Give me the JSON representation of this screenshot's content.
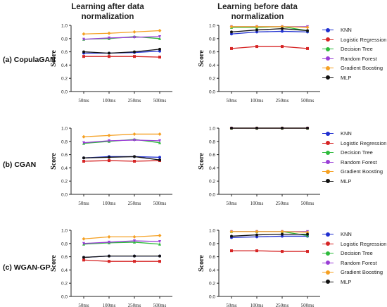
{
  "figure": {
    "col_titles": [
      "Learning after data\nnormalization",
      "Learning before data\nnormalization"
    ],
    "row_labels": [
      "(a) CopulaGAN",
      "(b) CGAN",
      "(c) WGAN-GP"
    ]
  },
  "colors": {
    "KNN": "#1f2fd0",
    "Logistic Regression": "#d62424",
    "Decision Tree": "#2dbb3c",
    "Random Forest": "#9a3ed6",
    "Gradient Boosting": "#f5a022",
    "MLP": "#111111"
  },
  "legends": [
    {
      "items": [
        "KNN",
        "Logistic Regression",
        "Decision Tree",
        "Random Forest",
        "Gradient Boosting",
        "MLP"
      ]
    },
    {
      "items": [
        "KNN",
        "Logistic Regression",
        "Decision Tree",
        "Random Forest",
        "Gradient Boosting",
        "MLP"
      ]
    },
    {
      "items": [
        "KNN",
        "Logistic Regression",
        "Decision Tree",
        "Random Forest",
        "Gradient Boosting",
        "MLP"
      ]
    }
  ],
  "chart_data": [
    {
      "type": "line",
      "panel": "(a) CopulaGAN - after normalization",
      "categories": [
        "50ms",
        "100ms",
        "250ms",
        "500ms"
      ],
      "ylabel": "Score",
      "ylim": [
        0,
        1.0
      ],
      "yticks": [
        "0.0",
        "0.2",
        "0.4",
        "0.6",
        "0.8",
        "1.0"
      ],
      "series": [
        {
          "name": "KNN",
          "values": [
            0.58,
            0.58,
            0.59,
            0.61
          ]
        },
        {
          "name": "Logistic Regression",
          "values": [
            0.53,
            0.53,
            0.53,
            0.52
          ]
        },
        {
          "name": "Decision Tree",
          "values": [
            0.79,
            0.8,
            0.83,
            0.8
          ]
        },
        {
          "name": "Random Forest",
          "values": [
            0.79,
            0.81,
            0.82,
            0.83
          ]
        },
        {
          "name": "Gradient Boosting",
          "values": [
            0.87,
            0.88,
            0.9,
            0.92
          ]
        },
        {
          "name": "MLP",
          "values": [
            0.6,
            0.58,
            0.6,
            0.64
          ]
        }
      ]
    },
    {
      "type": "line",
      "panel": "(a) CopulaGAN - before normalization",
      "categories": [
        "50ms",
        "100ms",
        "250ms",
        "500ms"
      ],
      "ylabel": "Score",
      "ylim": [
        0,
        1.0
      ],
      "yticks": [
        "0.0",
        "0.2",
        "0.4",
        "0.6",
        "0.8",
        "1.0"
      ],
      "series": [
        {
          "name": "KNN",
          "values": [
            0.87,
            0.9,
            0.91,
            0.9
          ]
        },
        {
          "name": "Logistic Regression",
          "values": [
            0.65,
            0.68,
            0.68,
            0.65
          ]
        },
        {
          "name": "Decision Tree",
          "values": [
            0.97,
            0.97,
            0.98,
            0.92
          ]
        },
        {
          "name": "Random Forest",
          "values": [
            0.98,
            0.98,
            0.98,
            0.98
          ]
        },
        {
          "name": "Gradient Boosting",
          "values": [
            0.98,
            0.98,
            0.98,
            0.97
          ]
        },
        {
          "name": "MLP",
          "values": [
            0.9,
            0.93,
            0.95,
            0.92
          ]
        }
      ]
    },
    {
      "type": "line",
      "panel": "(b) CGAN - after normalization",
      "categories": [
        "50ms",
        "100ms",
        "250ms",
        "500ms"
      ],
      "ylabel": "Score",
      "ylim": [
        0,
        1.0
      ],
      "yticks": [
        "0.0",
        "0.2",
        "0.4",
        "0.6",
        "0.8",
        "1.0"
      ],
      "series": [
        {
          "name": "KNN",
          "values": [
            0.55,
            0.57,
            0.57,
            0.56
          ]
        },
        {
          "name": "Logistic Regression",
          "values": [
            0.5,
            0.51,
            0.5,
            0.51
          ]
        },
        {
          "name": "Decision Tree",
          "values": [
            0.77,
            0.8,
            0.83,
            0.78
          ]
        },
        {
          "name": "Random Forest",
          "values": [
            0.78,
            0.81,
            0.82,
            0.81
          ]
        },
        {
          "name": "Gradient Boosting",
          "values": [
            0.87,
            0.89,
            0.91,
            0.91
          ]
        },
        {
          "name": "MLP",
          "values": [
            0.55,
            0.56,
            0.57,
            0.52
          ]
        }
      ]
    },
    {
      "type": "line",
      "panel": "(b) CGAN - before normalization",
      "categories": [
        "50ms",
        "100ms",
        "250ms",
        "500ms"
      ],
      "ylabel": "Score",
      "ylim": [
        0,
        1.0
      ],
      "yticks": [
        "0.0",
        "0.2",
        "0.4",
        "0.6",
        "0.8",
        "1.0"
      ],
      "series": [
        {
          "name": "KNN",
          "values": [
            1.0,
            1.0,
            1.0,
            1.0
          ]
        },
        {
          "name": "Logistic Regression",
          "values": [
            1.0,
            1.0,
            1.0,
            1.0
          ]
        },
        {
          "name": "Decision Tree",
          "values": [
            1.0,
            1.0,
            1.0,
            1.0
          ]
        },
        {
          "name": "Random Forest",
          "values": [
            1.0,
            1.0,
            1.0,
            1.0
          ]
        },
        {
          "name": "Gradient Boosting",
          "values": [
            1.0,
            1.0,
            1.0,
            1.0
          ]
        },
        {
          "name": "MLP",
          "values": [
            1.0,
            1.0,
            1.0,
            1.0
          ]
        }
      ]
    },
    {
      "type": "line",
      "panel": "(c) WGAN-GP - after normalization",
      "categories": [
        "50ms",
        "100ms",
        "250ms",
        "500ms"
      ],
      "ylabel": "Score",
      "ylim": [
        0,
        1.0
      ],
      "yticks": [
        "0.0",
        "0.2",
        "0.4",
        "0.6",
        "0.8",
        "1.0"
      ],
      "series": [
        {
          "name": "KNN",
          "values": [
            0.59,
            0.61,
            0.61,
            0.61
          ]
        },
        {
          "name": "Logistic Regression",
          "values": [
            0.55,
            0.53,
            0.53,
            0.53
          ]
        },
        {
          "name": "Decision Tree",
          "values": [
            0.79,
            0.81,
            0.82,
            0.79
          ]
        },
        {
          "name": "Random Forest",
          "values": [
            0.8,
            0.82,
            0.84,
            0.83
          ]
        },
        {
          "name": "Gradient Boosting",
          "values": [
            0.87,
            0.9,
            0.9,
            0.92
          ]
        },
        {
          "name": "MLP",
          "values": [
            0.59,
            0.61,
            0.61,
            0.61
          ]
        }
      ]
    },
    {
      "type": "line",
      "panel": "(c) WGAN-GP - before normalization",
      "categories": [
        "50ms",
        "100ms",
        "250ms",
        "500ms"
      ],
      "ylabel": "Score",
      "ylim": [
        0,
        1.0
      ],
      "yticks": [
        "0.0",
        "0.2",
        "0.4",
        "0.6",
        "0.8",
        "1.0"
      ],
      "series": [
        {
          "name": "KNN",
          "values": [
            0.89,
            0.9,
            0.91,
            0.91
          ]
        },
        {
          "name": "Logistic Regression",
          "values": [
            0.69,
            0.69,
            0.68,
            0.68
          ]
        },
        {
          "name": "Decision Tree",
          "values": [
            0.98,
            0.98,
            0.98,
            0.92
          ]
        },
        {
          "name": "Random Forest",
          "values": [
            0.98,
            0.98,
            0.98,
            0.98
          ]
        },
        {
          "name": "Gradient Boosting",
          "values": [
            0.98,
            0.98,
            0.98,
            0.97
          ]
        },
        {
          "name": "MLP",
          "values": [
            0.91,
            0.93,
            0.94,
            0.94
          ]
        }
      ]
    }
  ]
}
